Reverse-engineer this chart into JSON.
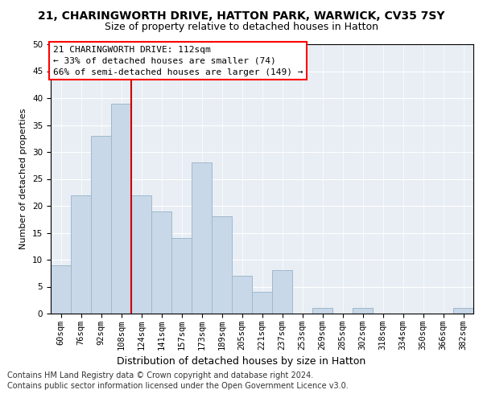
{
  "title1": "21, CHARINGWORTH DRIVE, HATTON PARK, WARWICK, CV35 7SY",
  "title2": "Size of property relative to detached houses in Hatton",
  "xlabel": "Distribution of detached houses by size in Hatton",
  "ylabel": "Number of detached properties",
  "bar_color": "#c8d8e8",
  "bar_edge_color": "#a0b8cc",
  "background_color": "#e8eef4",
  "categories": [
    "60sqm",
    "76sqm",
    "92sqm",
    "108sqm",
    "124sqm",
    "141sqm",
    "157sqm",
    "173sqm",
    "189sqm",
    "205sqm",
    "221sqm",
    "237sqm",
    "253sqm",
    "269sqm",
    "285sqm",
    "302sqm",
    "318sqm",
    "334sqm",
    "350sqm",
    "366sqm",
    "382sqm"
  ],
  "values": [
    9,
    22,
    33,
    39,
    22,
    19,
    14,
    28,
    18,
    7,
    4,
    8,
    0,
    1,
    0,
    1,
    0,
    0,
    0,
    0,
    1
  ],
  "ylim": [
    0,
    50
  ],
  "yticks": [
    0,
    5,
    10,
    15,
    20,
    25,
    30,
    35,
    40,
    45,
    50
  ],
  "vline_x": 3.5,
  "vline_color": "#cc0000",
  "annotation_text": "21 CHARINGWORTH DRIVE: 112sqm\n← 33% of detached houses are smaller (74)\n66% of semi-detached houses are larger (149) →",
  "footer1": "Contains HM Land Registry data © Crown copyright and database right 2024.",
  "footer2": "Contains public sector information licensed under the Open Government Licence v3.0.",
  "title1_fontsize": 10,
  "title2_fontsize": 9,
  "xlabel_fontsize": 9,
  "ylabel_fontsize": 8,
  "tick_fontsize": 7.5,
  "annotation_fontsize": 8,
  "footer_fontsize": 7
}
